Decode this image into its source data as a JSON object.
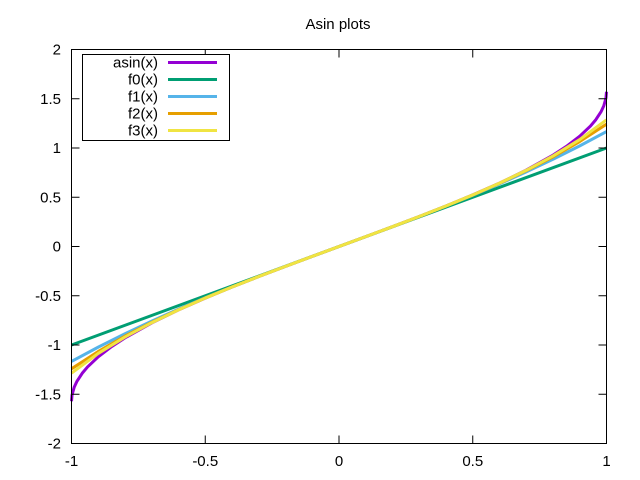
{
  "chart_data": {
    "type": "line",
    "title": "Asin plots",
    "xlabel": "",
    "ylabel": "",
    "xlim": [
      -1,
      1
    ],
    "ylim": [
      -2,
      2
    ],
    "x_ticks": [
      -1,
      -0.5,
      0,
      0.5,
      1
    ],
    "x_tick_labels": [
      "-1",
      "-0.5",
      "0",
      "0.5",
      "1"
    ],
    "y_ticks": [
      -2,
      -1.5,
      -1,
      -0.5,
      0,
      0.5,
      1,
      1.5,
      2
    ],
    "y_tick_labels": [
      "-2",
      "-1.5",
      "-1",
      "-0.5",
      "0",
      "0.5",
      "1",
      "1.5",
      "2"
    ],
    "grid": false,
    "legend_position": "top-left",
    "series": [
      {
        "name": "asin(x)",
        "color": "#9400d3",
        "x": [
          -1,
          -0.998,
          -0.99,
          -0.98,
          -0.96,
          -0.94,
          -0.9,
          -0.85,
          -0.8,
          -0.7,
          -0.6,
          -0.5,
          -0.4,
          -0.3,
          -0.2,
          -0.1,
          0,
          0.1,
          0.2,
          0.3,
          0.4,
          0.5,
          0.6,
          0.7,
          0.8,
          0.85,
          0.9,
          0.94,
          0.96,
          0.98,
          0.99,
          0.998,
          1
        ],
        "y": [
          -1.5708,
          -1.5075,
          -1.4293,
          -1.3705,
          -1.287,
          -1.2226,
          -1.1198,
          -1.016,
          -0.9273,
          -0.7754,
          -0.6435,
          -0.5236,
          -0.4115,
          -0.3047,
          -0.2014,
          -0.1002,
          0,
          0.1002,
          0.2014,
          0.3047,
          0.4115,
          0.5236,
          0.6435,
          0.7754,
          0.9273,
          1.016,
          1.1198,
          1.2226,
          1.287,
          1.3705,
          1.4293,
          1.5075,
          1.5708
        ]
      },
      {
        "name": "f0(x)",
        "color": "#009e73",
        "x": [
          -1,
          1
        ],
        "y": [
          -1,
          1
        ]
      },
      {
        "name": "f1(x)",
        "color": "#56b4e9",
        "x": [
          -1,
          -0.9,
          -0.8,
          -0.7,
          -0.6,
          -0.5,
          -0.4,
          -0.3,
          -0.2,
          -0.1,
          0,
          0.1,
          0.2,
          0.3,
          0.4,
          0.5,
          0.6,
          0.7,
          0.8,
          0.9,
          1
        ],
        "y": [
          -1.1667,
          -1.0215,
          -0.8853,
          -0.7572,
          -0.636,
          -0.5208,
          -0.4107,
          -0.3045,
          -0.2013,
          -0.1002,
          0,
          0.1002,
          0.2013,
          0.3045,
          0.4107,
          0.5208,
          0.636,
          0.7572,
          0.8853,
          1.0215,
          1.1667
        ]
      },
      {
        "name": "f2(x)",
        "color": "#e69f00",
        "x": [
          -1,
          -0.9,
          -0.8,
          -0.7,
          -0.6,
          -0.5,
          -0.4,
          -0.3,
          -0.2,
          -0.1,
          0,
          0.1,
          0.2,
          0.3,
          0.4,
          0.5,
          0.6,
          0.7,
          0.8,
          0.9,
          1
        ],
        "y": [
          -1.2417,
          -1.0658,
          -0.9099,
          -0.7702,
          -0.6418,
          -0.5231,
          -0.4114,
          -0.3046,
          -0.2014,
          -0.1002,
          0,
          0.1002,
          0.2014,
          0.3046,
          0.4114,
          0.5231,
          0.6418,
          0.7702,
          0.9099,
          1.0658,
          1.2417
        ]
      },
      {
        "name": "f3(x)",
        "color": "#f0e442",
        "x": [
          -1,
          -0.9,
          -0.8,
          -0.7,
          -0.6,
          -0.5,
          -0.4,
          -0.3,
          -0.2,
          -0.1,
          0,
          0.1,
          0.2,
          0.3,
          0.4,
          0.5,
          0.6,
          0.7,
          0.8,
          0.9,
          1
        ],
        "y": [
          -1.2863,
          -1.0858,
          -0.9193,
          -0.7739,
          -0.6433,
          -0.5235,
          -0.4115,
          -0.3047,
          -0.2014,
          -0.1002,
          0,
          0.1002,
          0.2014,
          0.3047,
          0.4115,
          0.5235,
          0.6433,
          0.7739,
          0.9193,
          1.0858,
          1.2863
        ]
      }
    ]
  }
}
